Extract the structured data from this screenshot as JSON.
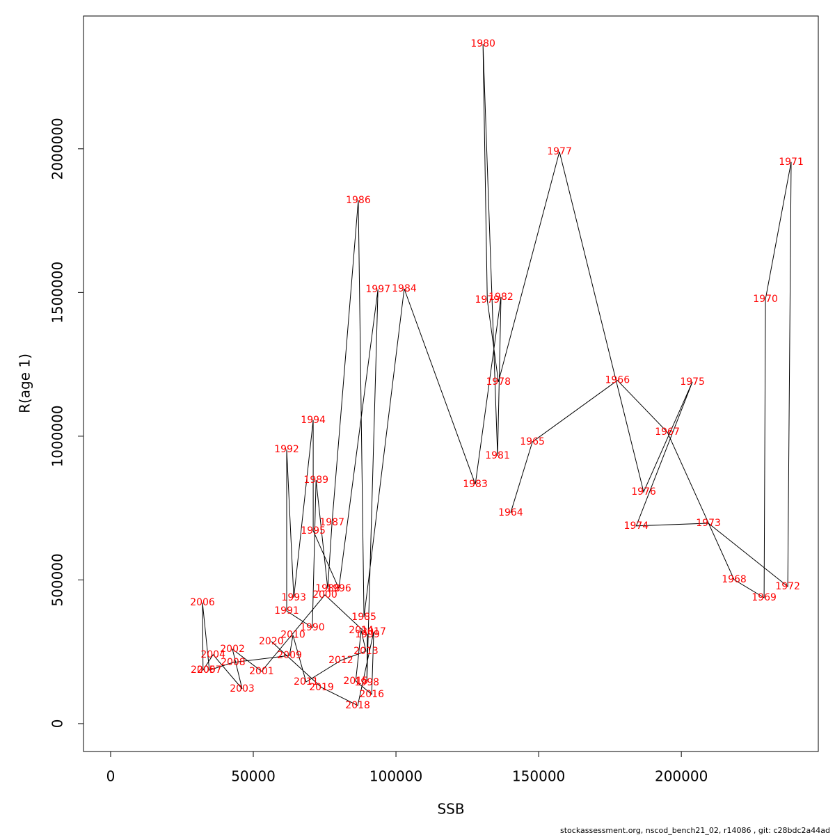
{
  "chart_data": {
    "type": "scatter",
    "x_label": "SSB",
    "y_label": "R(age 1)",
    "footer": "stockassessment.org, nscod_bench21_02, r14086 , git: c28bdc2a44ad",
    "labels": [
      "1964",
      "1965",
      "1966",
      "1967",
      "1968",
      "1969",
      "1970",
      "1971",
      "1972",
      "1973",
      "1974",
      "1975",
      "1976",
      "1977",
      "1978",
      "1979",
      "1980",
      "1981",
      "1982",
      "1983",
      "1984",
      "1985",
      "1986",
      "1987",
      "1988",
      "1989",
      "1990",
      "1991",
      "1992",
      "1993",
      "1994",
      "1995",
      "1996",
      "1997",
      "1998",
      "1999",
      "2000",
      "2001",
      "2002",
      "2003",
      "2004",
      "2005",
      "2006",
      "2007",
      "2008",
      "2009",
      "2010",
      "2011",
      "2012",
      "2013",
      "2014",
      "2015",
      "2016",
      "2017",
      "2018",
      "2019",
      "2020"
    ],
    "x": [
      140200,
      147800,
      177600,
      195100,
      218500,
      229000,
      229500,
      238500,
      237300,
      209500,
      184200,
      203900,
      186800,
      157300,
      135900,
      132000,
      130500,
      135600,
      136800,
      127800,
      102900,
      88800,
      86800,
      77600,
      76100,
      72000,
      70700,
      61700,
      61700,
      64200,
      71000,
      71000,
      80000,
      93700,
      89800,
      90000,
      75100,
      52900,
      42700,
      46100,
      35900,
      32400,
      32200,
      34600,
      42900,
      62700,
      63900,
      68500,
      80700,
      89500,
      87800,
      85900,
      91500,
      92200,
      86600,
      73900,
      56300
    ],
    "y": [
      734000,
      980000,
      1194000,
      1014000,
      501000,
      438000,
      1477000,
      1954000,
      477000,
      697000,
      688000,
      1189000,
      806000,
      1990000,
      1189000,
      1474000,
      2365000,
      932000,
      1484000,
      833000,
      1513000,
      370000,
      1821000,
      700000,
      470000,
      847000,
      334000,
      392000,
      954000,
      438000,
      1056000,
      671000,
      470000,
      1511000,
      143000,
      310000,
      448000,
      182000,
      259000,
      121000,
      240000,
      186000,
      421000,
      186000,
      213000,
      237000,
      308000,
      145000,
      220000,
      252000,
      324000,
      148000,
      102000,
      320000,
      63000,
      126000,
      286000
    ],
    "line_color": "#000000",
    "label_color": "#ff0000",
    "xlim": [
      -9500,
      248000
    ],
    "ylim": [
      -97000,
      2462000
    ],
    "xticks": [
      0,
      50000,
      100000,
      150000,
      200000
    ],
    "yticks": [
      0,
      500000,
      1000000,
      1500000,
      2000000
    ]
  }
}
